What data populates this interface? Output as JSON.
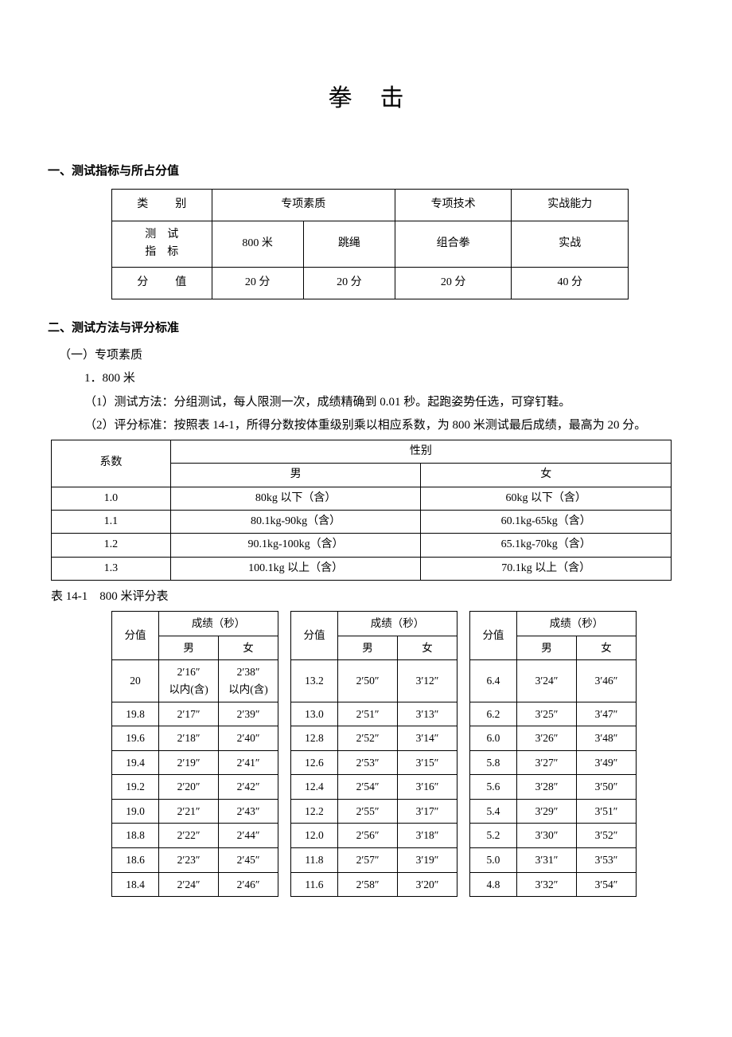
{
  "title": "拳击",
  "section1": {
    "heading": "一、测试指标与所占分值",
    "row_labels": [
      "类　别",
      "测　试指　标",
      "分　值"
    ],
    "header": [
      "专项素质",
      "专项技术",
      "实战能力"
    ],
    "indicators": [
      "800 米",
      "跳绳",
      "组合拳",
      "实战"
    ],
    "scores": [
      "20 分",
      "20 分",
      "20 分",
      "40 分"
    ]
  },
  "section2": {
    "heading": "二、测试方法与评分标准",
    "sub1": "（一）专项素质",
    "item1": "1．800 米",
    "p1": "（1）测试方法：分组测试，每人限测一次，成绩精确到 0.01 秒。起跑姿势任选，可穿钉鞋。",
    "p2": "（2）评分标准：按照表 14-1，所得分数按体重级别乘以相应系数，为 800 米测试最后成绩，最高为 20 分。"
  },
  "coef_table": {
    "head_coef": "系数",
    "head_gender": "性别",
    "head_m": "男",
    "head_f": "女",
    "rows": [
      [
        "1.0",
        "80kg 以下（含）",
        "60kg 以下（含）"
      ],
      [
        "1.1",
        "80.1kg-90kg（含）",
        "60.1kg-65kg（含）"
      ],
      [
        "1.2",
        "90.1kg-100kg（含）",
        "65.1kg-70kg（含）"
      ],
      [
        "1.3",
        "100.1kg 以上（含）",
        "70.1kg 以上（含）"
      ]
    ]
  },
  "caption_t3": "表 14-1　800 米评分表",
  "score_table": {
    "h_score": "分值",
    "h_result": "成绩（秒）",
    "h_m": "男",
    "h_f": "女",
    "blocks": [
      [
        [
          "20",
          "2′16″以内(含)",
          "2′38″以内(含)"
        ],
        [
          "19.8",
          "2′17″",
          "2′39″"
        ],
        [
          "19.6",
          "2′18″",
          "2′40″"
        ],
        [
          "19.4",
          "2′19″",
          "2′41″"
        ],
        [
          "19.2",
          "2′20″",
          "2′42″"
        ],
        [
          "19.0",
          "2′21″",
          "2′43″"
        ],
        [
          "18.8",
          "2′22″",
          "2′44″"
        ],
        [
          "18.6",
          "2′23″",
          "2′45″"
        ],
        [
          "18.4",
          "2′24″",
          "2′46″"
        ]
      ],
      [
        [
          "13.2",
          "2′50″",
          "3′12″"
        ],
        [
          "13.0",
          "2′51″",
          "3′13″"
        ],
        [
          "12.8",
          "2′52″",
          "3′14″"
        ],
        [
          "12.6",
          "2′53″",
          "3′15″"
        ],
        [
          "12.4",
          "2′54″",
          "3′16″"
        ],
        [
          "12.2",
          "2′55″",
          "3′17″"
        ],
        [
          "12.0",
          "2′56″",
          "3′18″"
        ],
        [
          "11.8",
          "2′57″",
          "3′19″"
        ],
        [
          "11.6",
          "2′58″",
          "3′20″"
        ]
      ],
      [
        [
          "6.4",
          "3′24″",
          "3′46″"
        ],
        [
          "6.2",
          "3′25″",
          "3′47″"
        ],
        [
          "6.0",
          "3′26″",
          "3′48″"
        ],
        [
          "5.8",
          "3′27″",
          "3′49″"
        ],
        [
          "5.6",
          "3′28″",
          "3′50″"
        ],
        [
          "5.4",
          "3′29″",
          "3′51″"
        ],
        [
          "5.2",
          "3′30″",
          "3′52″"
        ],
        [
          "5.0",
          "3′31″",
          "3′53″"
        ],
        [
          "4.8",
          "3′32″",
          "3′54″"
        ]
      ]
    ]
  }
}
